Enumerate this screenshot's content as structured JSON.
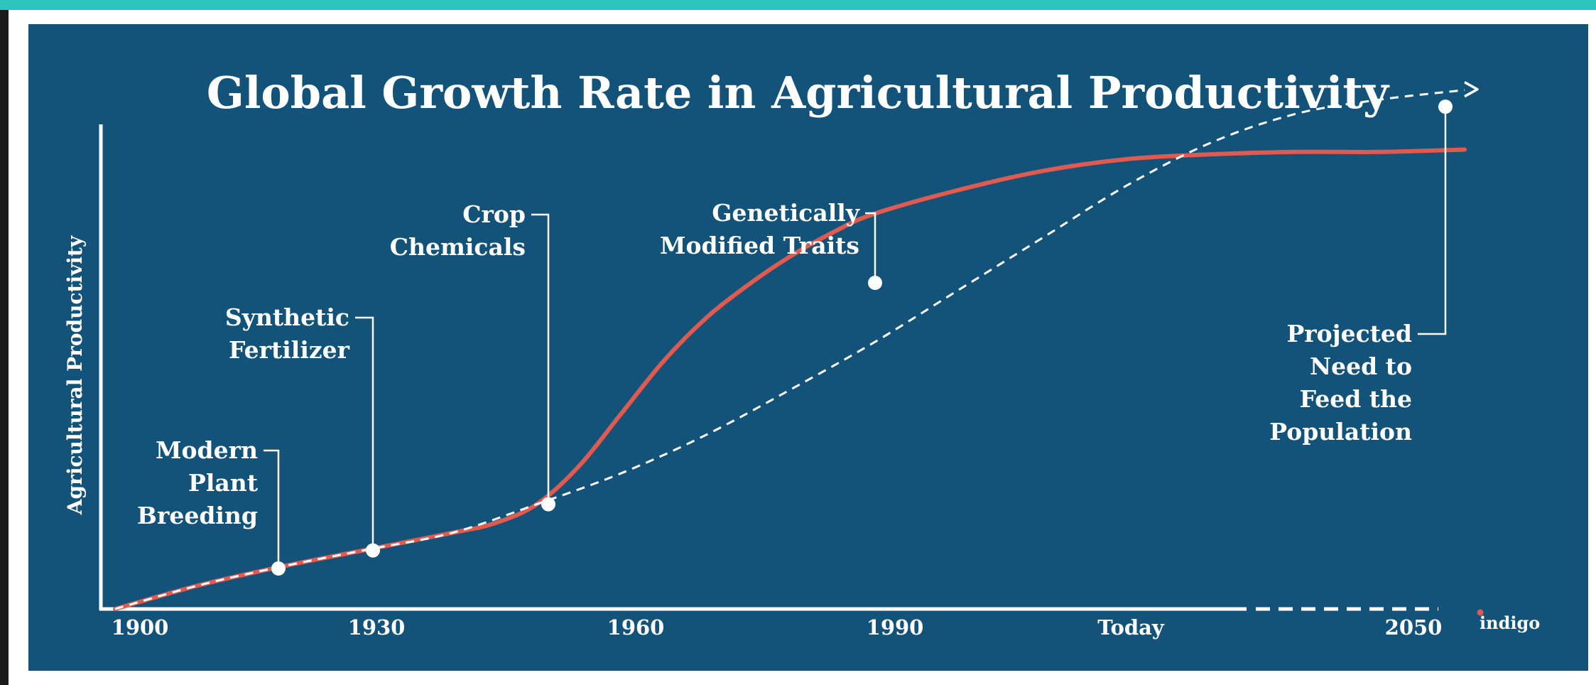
{
  "chart_data": {
    "type": "line",
    "title": "Global Growth Rate in Agricultural Productivity",
    "xlabel": "",
    "ylabel": "Agricultural Productivity",
    "x_tick_labels": [
      "1900",
      "1930",
      "1960",
      "1990",
      "Today",
      "2050"
    ],
    "series": [
      {
        "style": "solid",
        "color": "#e05a4f",
        "points": [
          [
            1900,
            0.0
          ],
          [
            1910,
            0.05
          ],
          [
            1920,
            0.09
          ],
          [
            1930,
            0.125
          ],
          [
            1940,
            0.16
          ],
          [
            1945,
            0.18
          ],
          [
            1950,
            0.22
          ],
          [
            1955,
            0.3
          ],
          [
            1960,
            0.41
          ],
          [
            1965,
            0.52
          ],
          [
            1970,
            0.61
          ],
          [
            1975,
            0.68
          ],
          [
            1980,
            0.74
          ],
          [
            1985,
            0.79
          ],
          [
            1990,
            0.83
          ],
          [
            2000,
            0.88
          ],
          [
            2010,
            0.92
          ],
          [
            2020,
            0.945
          ],
          [
            2030,
            0.955
          ],
          [
            2040,
            0.96
          ],
          [
            2050,
            0.96
          ],
          [
            2060,
            0.965
          ]
        ]
      },
      {
        "style": "dashed",
        "color": "#ffffff",
        "points": [
          [
            1900,
            0.0
          ],
          [
            1910,
            0.05
          ],
          [
            1920,
            0.09
          ],
          [
            1930,
            0.125
          ],
          [
            1940,
            0.16
          ],
          [
            1950,
            0.22
          ],
          [
            1960,
            0.285
          ],
          [
            1970,
            0.365
          ],
          [
            1980,
            0.46
          ],
          [
            1990,
            0.56
          ],
          [
            2000,
            0.67
          ],
          [
            2010,
            0.78
          ],
          [
            2020,
            0.89
          ],
          [
            2030,
            0.98
          ],
          [
            2040,
            1.04
          ],
          [
            2050,
            1.07
          ],
          [
            2060,
            1.09
          ]
        ]
      }
    ],
    "annotations": [
      {
        "label_lines": [
          "Modern",
          "Plant",
          "Breeding"
        ],
        "x": 1921,
        "y": 0.085
      },
      {
        "label_lines": [
          "Synthetic",
          "Fertilizer"
        ],
        "x": 1930,
        "y": 0.123
      },
      {
        "label_lines": [
          "Crop",
          "Chemicals"
        ],
        "x": 1950,
        "y": 0.22
      },
      {
        "label_lines": [
          "Genetically",
          "Modified Traits"
        ],
        "x": 1990,
        "y": 0.685
      },
      {
        "label_lines": [
          "Projected",
          "Need to",
          "Feed the",
          "Population"
        ],
        "x": 2050,
        "y": 1.055
      }
    ],
    "grid": false,
    "legend": "none"
  },
  "brand": {
    "name": "indigo",
    "dot_color": "#e05a4f"
  },
  "colors": {
    "background": "#13537a",
    "frame": "#2ec4bf",
    "solid_line": "#e05a4f",
    "dashed_line": "#ffffff",
    "axis": "#ffffff"
  }
}
